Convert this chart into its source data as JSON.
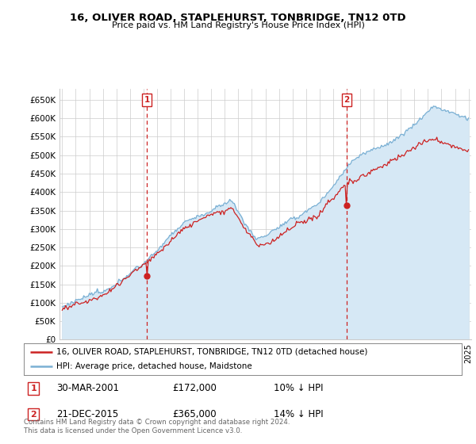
{
  "title": "16, OLIVER ROAD, STAPLEHURST, TONBRIDGE, TN12 0TD",
  "subtitle": "Price paid vs. HM Land Registry's House Price Index (HPI)",
  "hpi_color": "#7ab0d4",
  "hpi_fill_color": "#d6e8f5",
  "price_color": "#cc2222",
  "marker_color": "#cc2222",
  "legend_line1": "16, OLIVER ROAD, STAPLEHURST, TONBRIDGE, TN12 0TD (detached house)",
  "legend_line2": "HPI: Average price, detached house, Maidstone",
  "note1_label": "1",
  "note1_date": "30-MAR-2001",
  "note1_price": "£172,000",
  "note1_hpi": "10% ↓ HPI",
  "note2_label": "2",
  "note2_date": "21-DEC-2015",
  "note2_price": "£365,000",
  "note2_hpi": "14% ↓ HPI",
  "footer": "Contains HM Land Registry data © Crown copyright and database right 2024.\nThis data is licensed under the Open Government Licence v3.0.",
  "ylim_min": 0,
  "ylim_max": 680000,
  "xmin": 1994.8,
  "xmax": 2025.2,
  "marker1_x": 2001.25,
  "marker2_x": 2016.0,
  "sale1_price": 172000,
  "sale2_price": 365000,
  "background_color": "#ffffff",
  "grid_color": "#cccccc",
  "yticks": [
    0,
    50000,
    100000,
    150000,
    200000,
    250000,
    300000,
    350000,
    400000,
    450000,
    500000,
    550000,
    600000,
    650000
  ]
}
